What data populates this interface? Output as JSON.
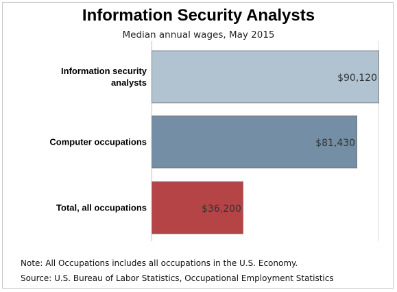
{
  "chart_data": {
    "type": "bar",
    "orientation": "horizontal",
    "title": "Information Security Analysts",
    "subtitle": "Median annual wages, May 2015",
    "categories": [
      "Information security analysts",
      "Computer occupations",
      "Total, all occupations"
    ],
    "values": [
      90120,
      81430,
      36200
    ],
    "value_labels": [
      "$90,120",
      "$81,430",
      "$36,200"
    ],
    "bar_colors": [
      "#b1c3d1",
      "#748fa5",
      "#b54447"
    ],
    "xlim": [
      0,
      90120
    ],
    "grid": true,
    "legend": "none"
  },
  "footer": {
    "note": "Note: All Occupations includes all occupations in the U.S. Economy.",
    "source": "Source: U.S. Bureau of Labor Statistics, Occupational Employment Statistics"
  }
}
